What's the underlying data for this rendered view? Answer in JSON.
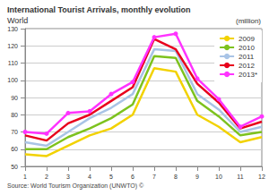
{
  "chart_data": {
    "type": "line",
    "title": "International Tourist Arrivals, monthly evolution",
    "subtitle": "World",
    "ylabel": "(million)",
    "annotations": [
      "Source: World Tourism Organization (UNWTO) ©"
    ],
    "categories": [
      "1",
      "2",
      "3",
      "4",
      "5",
      "6",
      "7",
      "8",
      "9",
      "10",
      "11",
      "12"
    ],
    "series": [
      {
        "name": "2009",
        "color": "#f2d200",
        "marker": "none",
        "values": [
          57,
          56,
          62,
          68,
          72,
          80,
          107,
          105,
          80,
          73,
          64,
          67
        ]
      },
      {
        "name": "2010",
        "color": "#7dc21e",
        "marker": "none",
        "values": [
          60,
          60,
          67,
          72,
          78,
          86,
          114,
          113,
          88,
          79,
          68,
          70
        ]
      },
      {
        "name": "2011",
        "color": "#a9c4e6",
        "marker": "none",
        "values": [
          64,
          62,
          70,
          78,
          84,
          92,
          118,
          117,
          92,
          83,
          70,
          73
        ]
      },
      {
        "name": "2012",
        "color": "#e8001c",
        "marker": "none",
        "values": [
          68,
          65,
          75,
          80,
          88,
          96,
          124,
          118,
          98,
          87,
          72,
          76
        ]
      },
      {
        "name": "2013*",
        "color": "#ff33ff",
        "marker": "circle",
        "values": [
          70,
          69,
          81,
          82,
          92,
          99,
          125,
          127,
          101,
          89,
          73,
          79
        ]
      }
    ],
    "ylim": [
      50,
      130
    ],
    "yticks": [
      50,
      60,
      70,
      80,
      90,
      100,
      110,
      120,
      130
    ],
    "grid": true,
    "legend": "right"
  }
}
